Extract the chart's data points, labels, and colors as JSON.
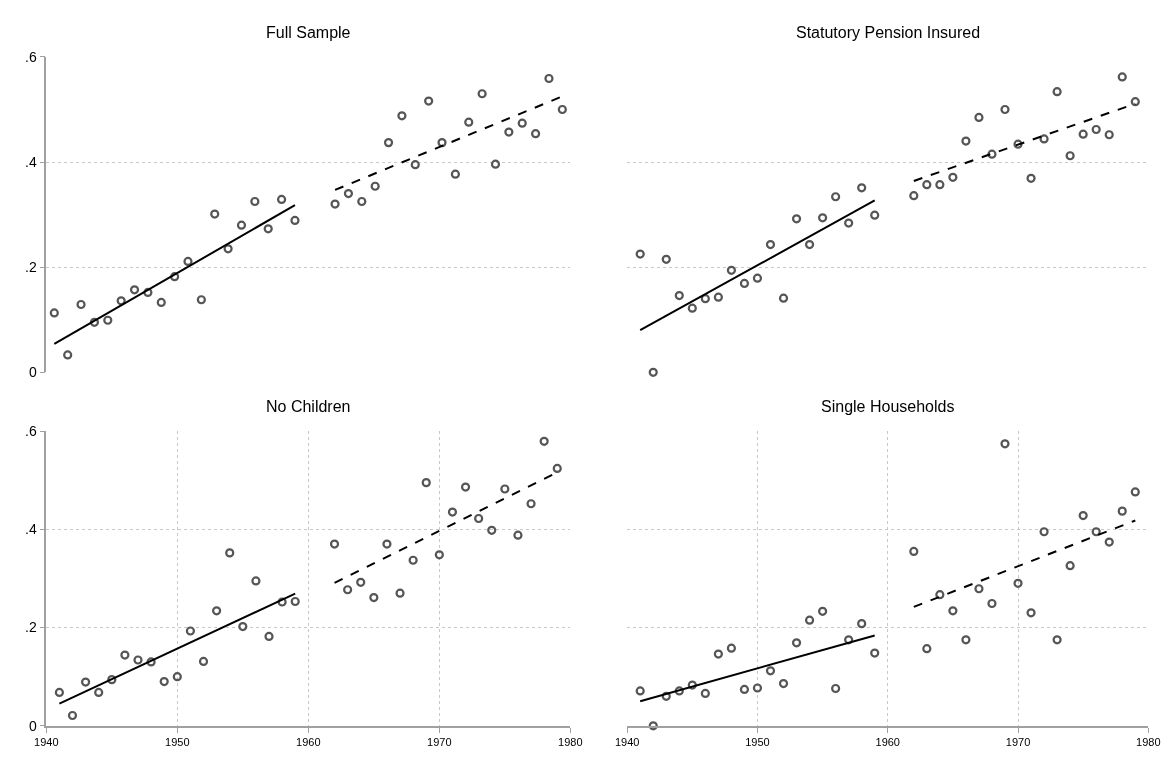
{
  "chart_data": [
    {
      "type": "scatter",
      "title": "Full Sample",
      "categories": [
        null,
        null,
        null,
        null,
        null,
        null,
        null,
        null,
        null,
        null,
        null,
        null,
        null,
        null,
        null,
        null,
        null,
        null,
        null,
        null,
        null,
        null,
        null,
        null,
        null,
        null,
        null,
        null,
        null,
        null,
        null,
        null,
        null,
        null,
        null,
        null,
        null,
        null,
        null
      ],
      "ylim": [
        0,
        0.6
      ],
      "yticks": [
        {
          "value": 0,
          "label": "0"
        },
        {
          "value": 0.2,
          "label": ".2"
        },
        {
          "value": 0.4,
          "label": ".4"
        },
        {
          "value": 0.6,
          "label": ".6"
        }
      ],
      "grid": "y",
      "tick_labels": "y",
      "marker": "circle",
      "series": [
        {
          "color": "#555555",
          "values": [
            0.113,
            0.033,
            0.129,
            0.095,
            0.099,
            0.136,
            0.157,
            0.152,
            0.133,
            0.182,
            0.211,
            0.138,
            0.301,
            0.235,
            0.28,
            0.325,
            0.273,
            0.329,
            0.289,
            null,
            null,
            null,
            null,
            null,
            null,
            null,
            null,
            null,
            null,
            null,
            null,
            null,
            null,
            null,
            null,
            null,
            null,
            null,
            null
          ]
        },
        {
          "color": "#555555",
          "values": [
            null,
            null,
            null,
            null,
            null,
            null,
            null,
            null,
            null,
            null,
            null,
            null,
            null,
            null,
            null,
            null,
            null,
            null,
            null,
            null,
            null,
            0.32,
            0.34,
            0.325,
            0.354,
            0.437,
            0.488,
            0.395,
            0.516,
            0.437,
            0.377,
            0.476,
            0.53,
            0.396,
            0.457,
            0.474,
            0.454,
            0.559,
            0.5
          ]
        },
        {
          "type": "line",
          "marker": "none",
          "color": "#000000",
          "line_style": "solid",
          "values": [
            0.054,
            null,
            null,
            null,
            null,
            null,
            null,
            null,
            null,
            null,
            null,
            null,
            null,
            null,
            null,
            null,
            null,
            null,
            0.318,
            null,
            null,
            null,
            null,
            null,
            null,
            null,
            null,
            null,
            null,
            null,
            null,
            null,
            null,
            null,
            null,
            null,
            null,
            null,
            null
          ]
        },
        {
          "type": "line",
          "marker": "none",
          "color": "#000000",
          "line_style": "dashed",
          "values": [
            null,
            null,
            null,
            null,
            null,
            null,
            null,
            null,
            null,
            null,
            null,
            null,
            null,
            null,
            null,
            null,
            null,
            null,
            null,
            null,
            null,
            0.347,
            null,
            null,
            null,
            null,
            null,
            null,
            null,
            null,
            null,
            null,
            null,
            null,
            null,
            null,
            null,
            null,
            0.525
          ]
        }
      ]
    },
    {
      "type": "scatter",
      "title": "Statutory Pension Insured",
      "xlim": [
        1940,
        1980
      ],
      "ylim": [
        0,
        0.6
      ],
      "yticks": [
        {
          "value": 0,
          "label": null
        },
        {
          "value": 0.2,
          "label": null
        },
        {
          "value": 0.4,
          "label": null
        },
        {
          "value": 0.6,
          "label": null
        }
      ],
      "grid": "y",
      "tick_labels": false,
      "marker": "circle",
      "series": [
        {
          "color": "#555555",
          "x": [
            1941,
            1942,
            1943,
            1944,
            1945,
            1946,
            1947,
            1948,
            1949,
            1950,
            1951,
            1952,
            1953,
            1954,
            1955,
            1956,
            1957,
            1958,
            1959
          ],
          "values": [
            0.225,
            0.0,
            0.215,
            0.146,
            0.122,
            0.14,
            0.143,
            0.194,
            0.169,
            0.179,
            0.243,
            0.141,
            0.292,
            0.243,
            0.294,
            0.334,
            0.284,
            0.351,
            0.299
          ]
        },
        {
          "color": "#555555",
          "x": [
            1962,
            1963,
            1964,
            1965,
            1966,
            1967,
            1968,
            1969,
            1970,
            1971,
            1972,
            1973,
            1974,
            1975,
            1976,
            1977,
            1978,
            1979
          ],
          "values": [
            0.336,
            0.357,
            0.357,
            0.371,
            0.44,
            0.485,
            0.415,
            0.5,
            0.434,
            0.369,
            0.444,
            0.534,
            0.412,
            0.453,
            0.462,
            0.452,
            0.562,
            0.515
          ]
        },
        {
          "type": "line",
          "marker": "none",
          "color": "#000000",
          "line_style": "solid",
          "x": [
            1941,
            1959
          ],
          "values": [
            0.08,
            0.327
          ]
        },
        {
          "type": "line",
          "marker": "none",
          "color": "#000000",
          "line_style": "dashed",
          "x": [
            1962,
            1979
          ],
          "values": [
            0.364,
            0.511
          ]
        }
      ]
    },
    {
      "type": "scatter",
      "title": "No Children",
      "xlim": [
        1940,
        1980
      ],
      "xticks": [
        1940,
        1950,
        1960,
        1970,
        1980
      ],
      "ylim": [
        0,
        0.6
      ],
      "yticks": [
        {
          "value": 0,
          "label": "0"
        },
        {
          "value": 0.2,
          "label": ".2"
        },
        {
          "value": 0.4,
          "label": ".4"
        },
        {
          "value": 0.6,
          "label": ".6"
        }
      ],
      "grid": true,
      "marker": "circle",
      "series": [
        {
          "color": "#555555",
          "x": [
            1941,
            1942,
            1943,
            1944,
            1945,
            1946,
            1947,
            1948,
            1949,
            1950,
            1951,
            1952,
            1953,
            1954,
            1955,
            1956,
            1957,
            1958,
            1959
          ],
          "values": [
            0.068,
            0.021,
            0.089,
            0.068,
            0.094,
            0.144,
            0.134,
            0.13,
            0.09,
            0.1,
            0.193,
            0.131,
            0.234,
            0.352,
            0.202,
            0.295,
            0.182,
            0.252,
            0.253
          ]
        },
        {
          "color": "#555555",
          "x": [
            1962,
            1963,
            1964,
            1965,
            1966,
            1967,
            1968,
            1969,
            1970,
            1971,
            1972,
            1973,
            1974,
            1975,
            1976,
            1977,
            1978,
            1979
          ],
          "values": [
            0.37,
            0.277,
            0.292,
            0.261,
            0.37,
            0.27,
            0.337,
            0.495,
            0.348,
            0.435,
            0.486,
            0.422,
            0.398,
            0.482,
            0.388,
            0.452,
            0.579,
            0.524
          ]
        },
        {
          "type": "line",
          "marker": "none",
          "color": "#000000",
          "line_style": "solid",
          "x": [
            1941,
            1959
          ],
          "values": [
            0.045,
            0.269
          ]
        },
        {
          "type": "line",
          "marker": "none",
          "color": "#000000",
          "line_style": "dashed",
          "x": [
            1962,
            1979
          ],
          "values": [
            0.291,
            0.516
          ]
        }
      ]
    },
    {
      "type": "scatter",
      "title": "Single Households",
      "xlim": [
        1940,
        1980
      ],
      "xticks": [
        1940,
        1950,
        1960,
        1970,
        1980
      ],
      "ylim": [
        0,
        0.6
      ],
      "yticks": [
        {
          "value": 0,
          "label": null
        },
        {
          "value": 0.2,
          "label": null
        },
        {
          "value": 0.4,
          "label": null
        },
        {
          "value": 0.6,
          "label": null
        }
      ],
      "grid": true,
      "tick_labels": "x",
      "marker": "circle",
      "series": [
        {
          "color": "#555555",
          "x": [
            1941,
            1942,
            1943,
            1944,
            1945,
            1946,
            1947,
            1948,
            1949,
            1950,
            1951,
            1952,
            1953,
            1954,
            1955,
            1956,
            1957,
            1958,
            1959
          ],
          "values": [
            0.071,
            0.0,
            0.06,
            0.071,
            0.083,
            0.066,
            0.146,
            0.158,
            0.074,
            0.077,
            0.112,
            0.086,
            0.169,
            0.215,
            0.233,
            0.076,
            0.175,
            0.208,
            0.148
          ]
        },
        {
          "color": "#555555",
          "x": [
            1962,
            1963,
            1964,
            1965,
            1966,
            1967,
            1968,
            1969,
            1970,
            1971,
            1972,
            1973,
            1974,
            1975,
            1976,
            1977,
            1978,
            1979
          ],
          "values": [
            0.355,
            0.157,
            0.267,
            0.234,
            0.175,
            0.279,
            0.249,
            0.574,
            0.29,
            0.23,
            0.395,
            0.175,
            0.326,
            0.428,
            0.395,
            0.374,
            0.437,
            0.476
          ]
        },
        {
          "type": "line",
          "marker": "none",
          "color": "#000000",
          "line_style": "solid",
          "x": [
            1941,
            1959
          ],
          "values": [
            0.05,
            0.184
          ]
        },
        {
          "type": "line",
          "marker": "none",
          "color": "#000000",
          "line_style": "dashed",
          "x": [
            1962,
            1979
          ],
          "values": [
            0.242,
            0.418
          ]
        }
      ]
    }
  ]
}
